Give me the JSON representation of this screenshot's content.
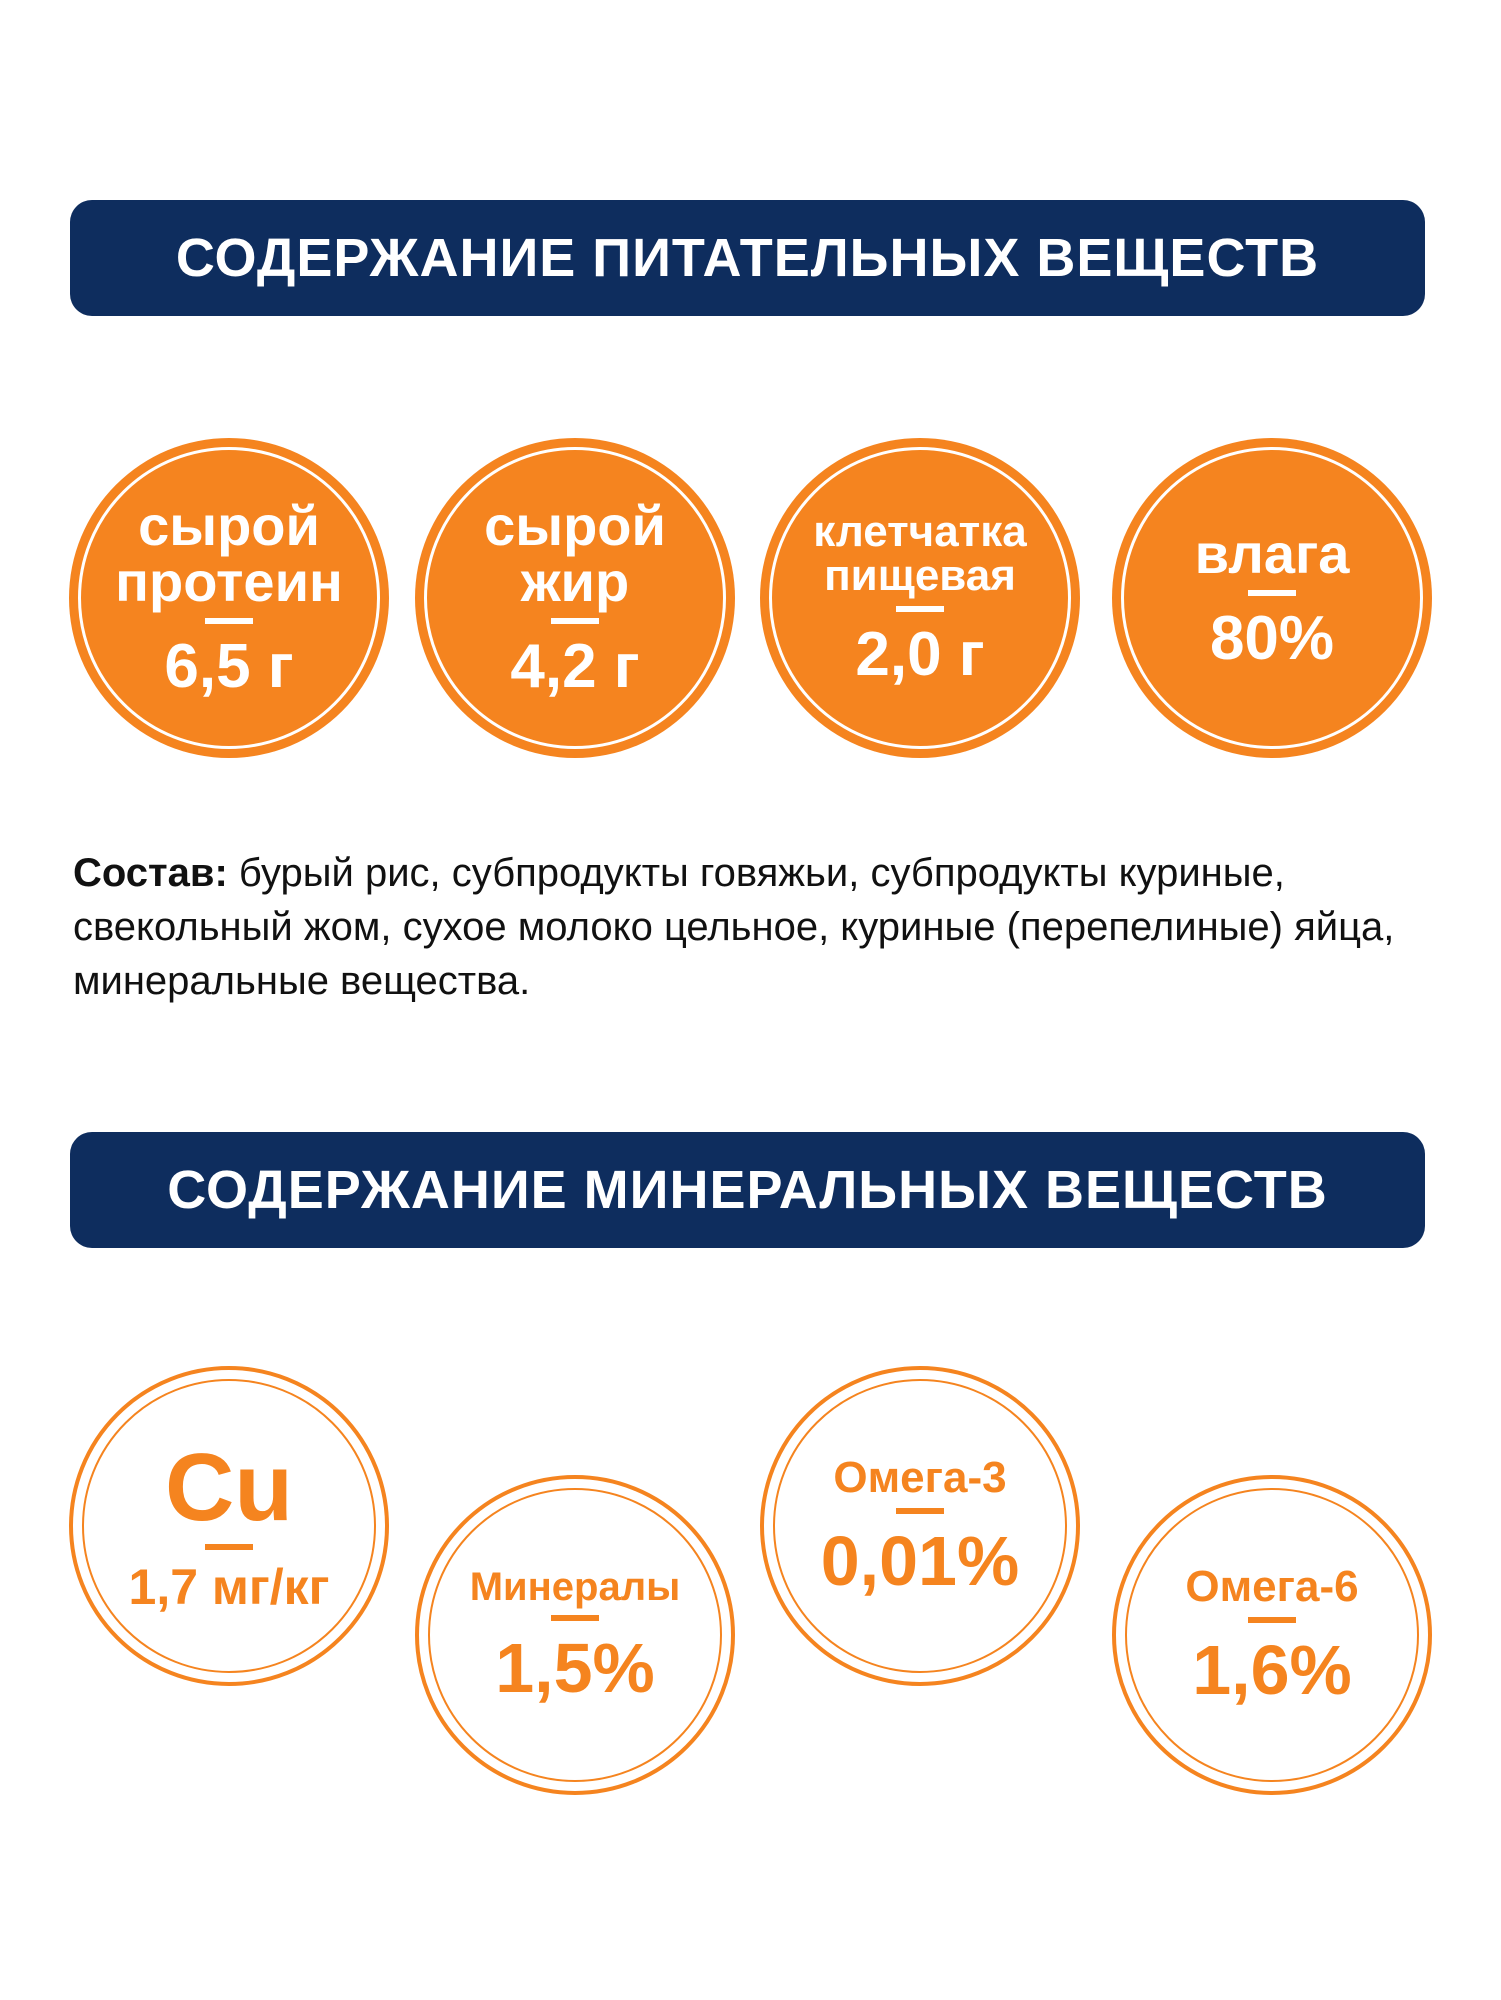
{
  "nutrients": {
    "title": "СОДЕРЖАНИЕ ПИТАТЕЛЬНЫХ ВЕЩЕСТВ",
    "items": [
      {
        "label": [
          "сырой",
          "протеин"
        ],
        "value": "6,5 г"
      },
      {
        "label": [
          "сырой",
          "жир"
        ],
        "value": "4,2 г"
      },
      {
        "label": [
          "клетчатка",
          "пищевая"
        ],
        "value": "2,0 г"
      },
      {
        "label": [
          "влага"
        ],
        "value": "80%"
      }
    ]
  },
  "composition": {
    "heading": "Состав:",
    "text": "бурый рис, субпродукты говяжьи, субпродукты куриные, свекольный жом, сухое молоко цельное, куриные (перепелиные) яйца, минеральные вещества."
  },
  "minerals": {
    "title": "СОДЕРЖАНИЕ МИНЕРАЛЬНЫХ ВЕЩЕСТВ",
    "items": [
      {
        "label": [
          "Cu"
        ],
        "value": "1,7 мг/кг"
      },
      {
        "label": [
          "Минералы"
        ],
        "value": "1,5%"
      },
      {
        "label": [
          "Омега-3"
        ],
        "value": "0,01%"
      },
      {
        "label": [
          "Омега-6"
        ],
        "value": "1,6%"
      }
    ]
  }
}
